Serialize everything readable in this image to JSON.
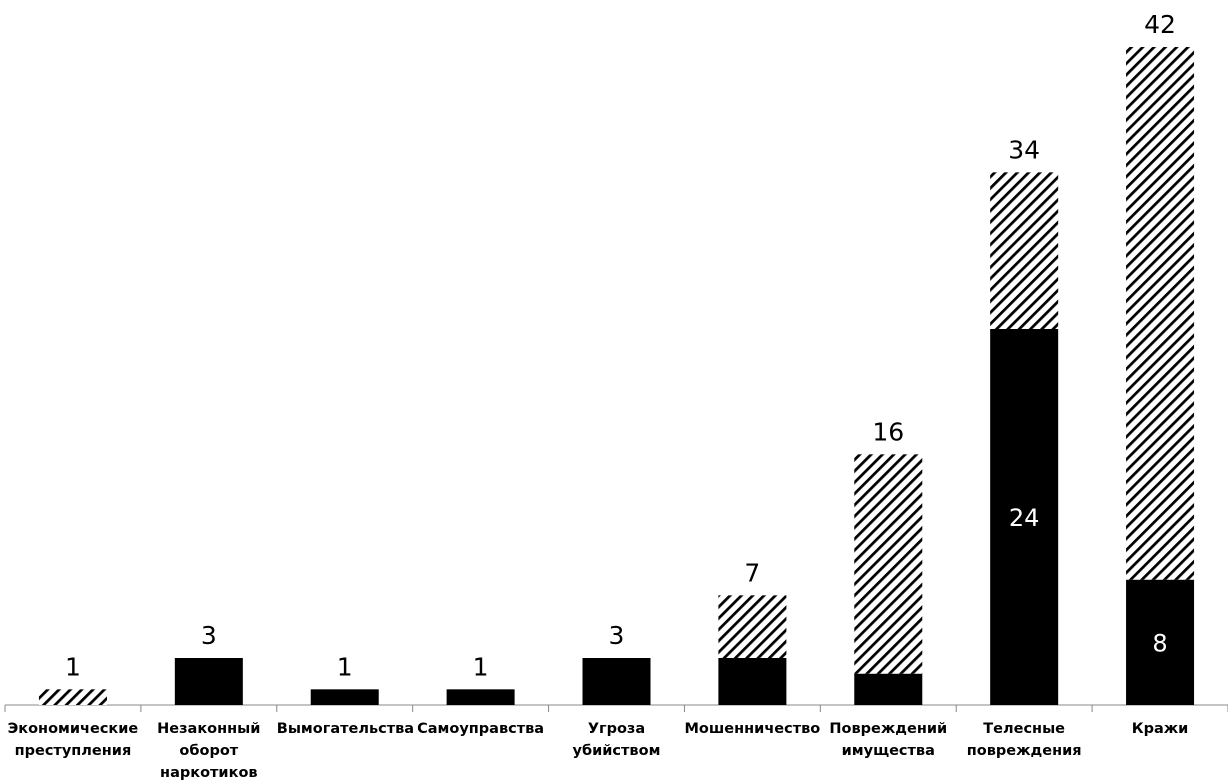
{
  "chart_data": {
    "type": "stacked_bar",
    "categories": [
      "Экономические преступления",
      "Незаконный оборот наркотиков",
      "Вымогательства",
      "Самоуправства",
      "Угроза убийством",
      "Мошенничество",
      "Повреждений имущества",
      "Телесные повреждения",
      "Кражи"
    ],
    "series": [
      {
        "color": "#000000",
        "pattern": "solid",
        "values": [
          0,
          3,
          1,
          1,
          3,
          3,
          2,
          24,
          8
        ],
        "value_labels": [
          null,
          null,
          null,
          null,
          null,
          null,
          null,
          "24",
          "8"
        ]
      },
      {
        "color": "#000000",
        "pattern": "hatch",
        "values": [
          1,
          0,
          0,
          0,
          0,
          4,
          14,
          10,
          34
        ]
      }
    ],
    "totals": [
      1,
      3,
      1,
      1,
      3,
      7,
      16,
      34,
      42
    ],
    "ylim": [
      0,
      45
    ]
  }
}
